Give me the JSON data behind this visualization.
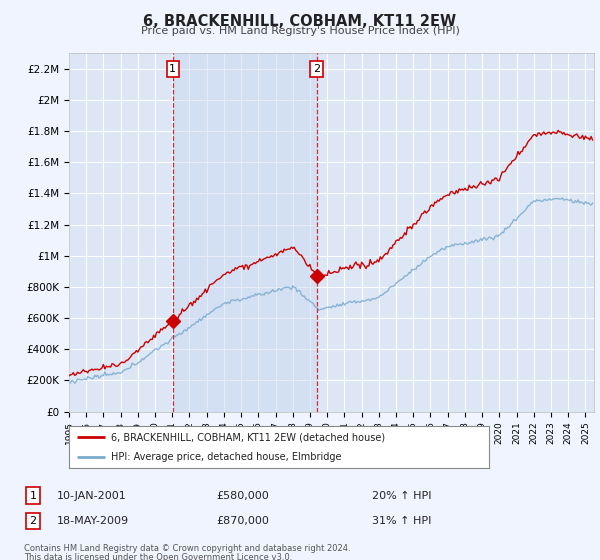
{
  "title": "6, BRACKENHILL, COBHAM, KT11 2EW",
  "subtitle": "Price paid vs. HM Land Registry's House Price Index (HPI)",
  "ylabel_ticks": [
    "£0",
    "£200K",
    "£400K",
    "£600K",
    "£800K",
    "£1M",
    "£1.2M",
    "£1.4M",
    "£1.6M",
    "£1.8M",
    "£2M",
    "£2.2M"
  ],
  "ytick_values": [
    0,
    200000,
    400000,
    600000,
    800000,
    1000000,
    1200000,
    1400000,
    1600000,
    1800000,
    2000000,
    2200000
  ],
  "ylim": [
    0,
    2300000
  ],
  "xlim_start": 1995.0,
  "xlim_end": 2025.5,
  "background_color": "#f0f4ff",
  "plot_bg_color": "#dce6f5",
  "shade_color": "#ccdaf0",
  "grid_color": "#ffffff",
  "red_line_color": "#cc0000",
  "blue_line_color": "#7aabcf",
  "sale1_x": 2001.03,
  "sale1_y": 580000,
  "sale2_x": 2009.38,
  "sale2_y": 870000,
  "legend_label1": "6, BRACKENHILL, COBHAM, KT11 2EW (detached house)",
  "legend_label2": "HPI: Average price, detached house, Elmbridge",
  "annotation1_label": "1",
  "annotation1_date": "10-JAN-2001",
  "annotation1_price": "£580,000",
  "annotation1_hpi": "20% ↑ HPI",
  "annotation2_label": "2",
  "annotation2_date": "18-MAY-2009",
  "annotation2_price": "£870,000",
  "annotation2_hpi": "31% ↑ HPI",
  "footnote1": "Contains HM Land Registry data © Crown copyright and database right 2024.",
  "footnote2": "This data is licensed under the Open Government Licence v3.0."
}
